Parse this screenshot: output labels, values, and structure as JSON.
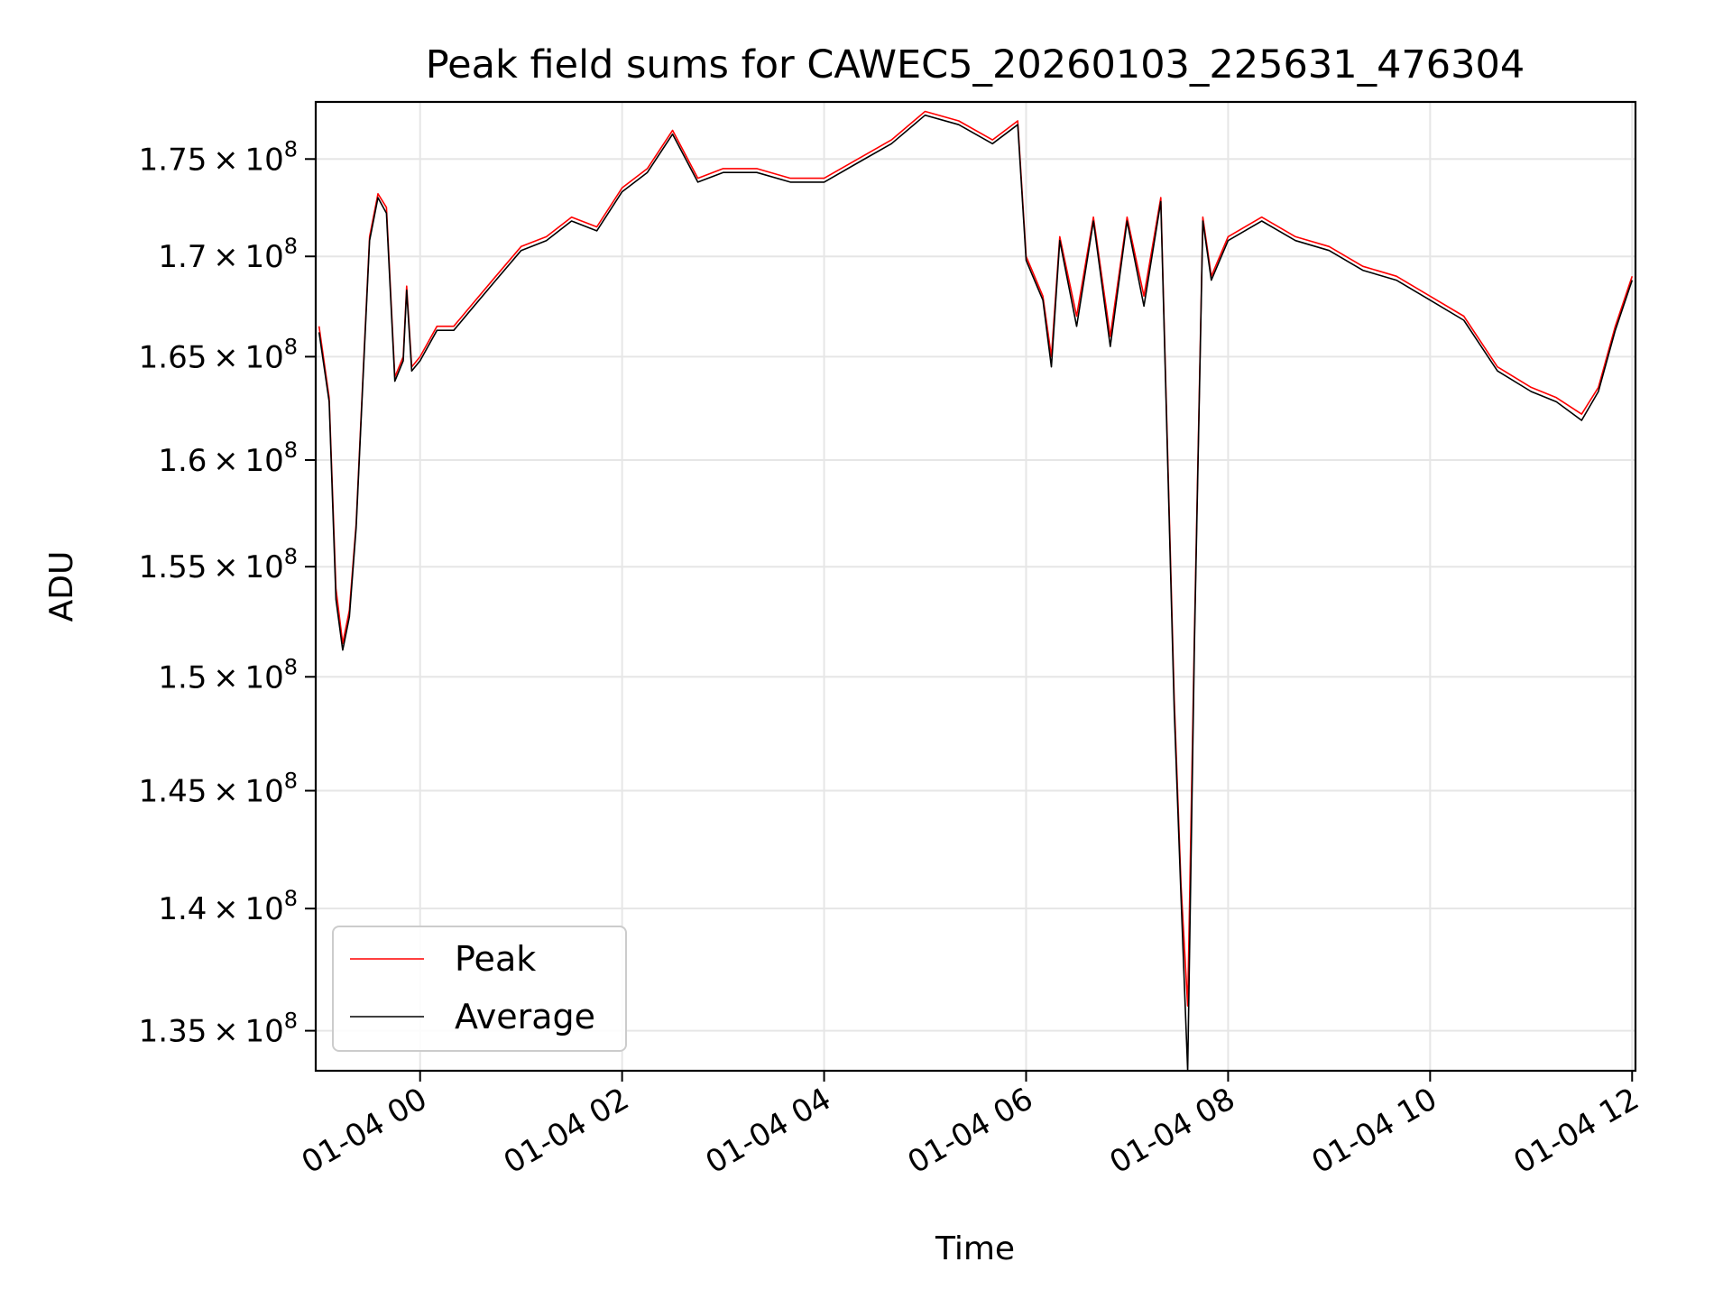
{
  "chart_data": {
    "type": "line",
    "title": "Peak field sums for CAWEC5_20260103_225631_476304",
    "xlabel": "Time",
    "ylabel": "ADU",
    "x_ticks": [
      "01-04 00",
      "01-04 02",
      "01-04 04",
      "01-04 06",
      "01-04 08",
      "01-04 10",
      "01-04 12"
    ],
    "y_ticks": [
      {
        "mantissa": "1.35",
        "value": 135000000
      },
      {
        "mantissa": "1.4",
        "value": 140000000
      },
      {
        "mantissa": "1.45",
        "value": 145000000
      },
      {
        "mantissa": "1.5",
        "value": 150000000
      },
      {
        "mantissa": "1.55",
        "value": 155000000
      },
      {
        "mantissa": "1.6",
        "value": 160000000
      },
      {
        "mantissa": "1.65",
        "value": 165000000
      },
      {
        "mantissa": "1.7",
        "value": 170000000
      },
      {
        "mantissa": "1.75",
        "value": 175000000
      }
    ],
    "y_tick_factor": "10",
    "y_tick_exponent": "8",
    "y_scale": "log",
    "xlim": [
      "2026-01-03 22:58",
      "2026-01-04 12:02"
    ],
    "ylim": [
      133400000,
      178000000
    ],
    "grid": true,
    "legend_position": "lower-left",
    "series": [
      {
        "name": "Peak",
        "color": "#ff0000",
        "x": [
          "2026-01-03 23:00",
          "2026-01-03 23:06",
          "2026-01-03 23:10",
          "2026-01-03 23:14",
          "2026-01-03 23:18",
          "2026-01-03 23:22",
          "2026-01-03 23:26",
          "2026-01-03 23:30",
          "2026-01-03 23:35",
          "2026-01-03 23:40",
          "2026-01-03 23:45",
          "2026-01-03 23:50",
          "2026-01-03 23:52",
          "2026-01-03 23:55",
          "2026-01-04 00:00",
          "2026-01-04 00:10",
          "2026-01-04 00:20",
          "2026-01-04 00:30",
          "2026-01-04 00:45",
          "2026-01-04 01:00",
          "2026-01-04 01:15",
          "2026-01-04 01:30",
          "2026-01-04 01:45",
          "2026-01-04 02:00",
          "2026-01-04 02:15",
          "2026-01-04 02:30",
          "2026-01-04 02:45",
          "2026-01-04 03:00",
          "2026-01-04 03:20",
          "2026-01-04 03:40",
          "2026-01-04 04:00",
          "2026-01-04 04:20",
          "2026-01-04 04:40",
          "2026-01-04 05:00",
          "2026-01-04 05:20",
          "2026-01-04 05:40",
          "2026-01-04 05:55",
          "2026-01-04 06:00",
          "2026-01-04 06:10",
          "2026-01-04 06:15",
          "2026-01-04 06:20",
          "2026-01-04 06:30",
          "2026-01-04 06:40",
          "2026-01-04 06:50",
          "2026-01-04 07:00",
          "2026-01-04 07:10",
          "2026-01-04 07:20",
          "2026-01-04 07:28",
          "2026-01-04 07:32",
          "2026-01-04 07:36",
          "2026-01-04 07:40",
          "2026-01-04 07:45",
          "2026-01-04 07:50",
          "2026-01-04 08:00",
          "2026-01-04 08:20",
          "2026-01-04 08:40",
          "2026-01-04 09:00",
          "2026-01-04 09:20",
          "2026-01-04 09:40",
          "2026-01-04 10:00",
          "2026-01-04 10:20",
          "2026-01-04 10:40",
          "2026-01-04 11:00",
          "2026-01-04 11:15",
          "2026-01-04 11:30",
          "2026-01-04 11:40",
          "2026-01-04 11:50",
          "2026-01-04 12:00"
        ],
        "values": [
          166500000,
          163000000,
          154000000,
          151500000,
          153000000,
          157000000,
          164000000,
          171000000,
          173200000,
          172500000,
          164000000,
          165000000,
          168500000,
          164500000,
          165000000,
          166500000,
          166500000,
          167500000,
          169000000,
          170500000,
          171000000,
          172000000,
          171500000,
          173500000,
          174500000,
          176500000,
          174000000,
          174500000,
          174500000,
          174000000,
          174000000,
          175000000,
          176000000,
          177500000,
          177000000,
          176000000,
          177000000,
          170000000,
          168000000,
          165000000,
          171000000,
          167000000,
          172000000,
          166000000,
          172000000,
          168000000,
          173000000,
          149000000,
          141000000,
          136000000,
          152000000,
          172000000,
          169000000,
          171000000,
          172000000,
          171000000,
          170500000,
          169500000,
          169000000,
          168000000,
          167000000,
          164500000,
          163500000,
          163000000,
          162200000,
          163500000,
          166500000,
          169000000
        ]
      },
      {
        "name": "Average",
        "color": "#000000",
        "x": [
          "2026-01-03 23:00",
          "2026-01-03 23:06",
          "2026-01-03 23:10",
          "2026-01-03 23:14",
          "2026-01-03 23:18",
          "2026-01-03 23:22",
          "2026-01-03 23:26",
          "2026-01-03 23:30",
          "2026-01-03 23:35",
          "2026-01-03 23:40",
          "2026-01-03 23:45",
          "2026-01-03 23:50",
          "2026-01-03 23:52",
          "2026-01-03 23:55",
          "2026-01-04 00:00",
          "2026-01-04 00:10",
          "2026-01-04 00:20",
          "2026-01-04 00:30",
          "2026-01-04 00:45",
          "2026-01-04 01:00",
          "2026-01-04 01:15",
          "2026-01-04 01:30",
          "2026-01-04 01:45",
          "2026-01-04 02:00",
          "2026-01-04 02:15",
          "2026-01-04 02:30",
          "2026-01-04 02:45",
          "2026-01-04 03:00",
          "2026-01-04 03:20",
          "2026-01-04 03:40",
          "2026-01-04 04:00",
          "2026-01-04 04:20",
          "2026-01-04 04:40",
          "2026-01-04 05:00",
          "2026-01-04 05:20",
          "2026-01-04 05:40",
          "2026-01-04 05:55",
          "2026-01-04 06:00",
          "2026-01-04 06:10",
          "2026-01-04 06:15",
          "2026-01-04 06:20",
          "2026-01-04 06:30",
          "2026-01-04 06:40",
          "2026-01-04 06:50",
          "2026-01-04 07:00",
          "2026-01-04 07:10",
          "2026-01-04 07:20",
          "2026-01-04 07:28",
          "2026-01-04 07:32",
          "2026-01-04 07:36",
          "2026-01-04 07:40",
          "2026-01-04 07:45",
          "2026-01-04 07:50",
          "2026-01-04 08:00",
          "2026-01-04 08:20",
          "2026-01-04 08:40",
          "2026-01-04 09:00",
          "2026-01-04 09:20",
          "2026-01-04 09:40",
          "2026-01-04 10:00",
          "2026-01-04 10:20",
          "2026-01-04 10:40",
          "2026-01-04 11:00",
          "2026-01-04 11:15",
          "2026-01-04 11:30",
          "2026-01-04 11:40",
          "2026-01-04 11:50",
          "2026-01-04 12:00"
        ],
        "values": [
          166200000,
          162800000,
          153500000,
          151200000,
          152700000,
          156800000,
          163800000,
          170800000,
          173000000,
          172200000,
          163800000,
          164800000,
          168300000,
          164300000,
          164800000,
          166300000,
          166300000,
          167300000,
          168800000,
          170300000,
          170800000,
          171800000,
          171300000,
          173300000,
          174300000,
          176300000,
          173800000,
          174300000,
          174300000,
          173800000,
          173800000,
          174800000,
          175800000,
          177300000,
          176800000,
          175800000,
          176800000,
          169800000,
          167800000,
          164500000,
          170800000,
          166500000,
          171800000,
          165500000,
          171800000,
          167500000,
          172800000,
          148500000,
          140500000,
          133400000,
          151500000,
          171800000,
          168800000,
          170800000,
          171800000,
          170800000,
          170300000,
          169300000,
          168800000,
          167800000,
          166800000,
          164300000,
          163300000,
          162800000,
          161900000,
          163300000,
          166300000,
          168800000
        ]
      }
    ]
  }
}
